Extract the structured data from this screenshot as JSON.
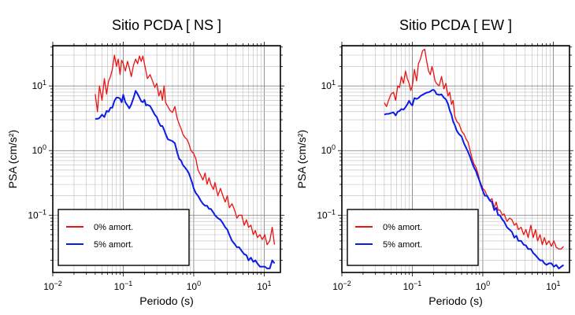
{
  "chart_data": [
    {
      "type": "line",
      "title": "Sitio PCDA [ NS ]",
      "xlabel": "Periodo (s)",
      "ylabel": "PSA (cm/s²)",
      "xscale": "log",
      "yscale": "log",
      "xlim": [
        0.01,
        17
      ],
      "ylim": [
        0.013,
        42
      ],
      "grid": true,
      "legend_position": "bottom-left",
      "x_ticks": [
        {
          "value": 0.01,
          "base": "10",
          "exp": "−2"
        },
        {
          "value": 0.1,
          "base": "10",
          "exp": "−1"
        },
        {
          "value": 1,
          "base": "10",
          "exp": "0"
        },
        {
          "value": 10,
          "base": "10",
          "exp": "1"
        }
      ],
      "y_ticks": [
        {
          "value": 0.1,
          "base": "10",
          "exp": "−1"
        },
        {
          "value": 1,
          "base": "10",
          "exp": "0"
        },
        {
          "value": 10,
          "base": "10",
          "exp": "1"
        }
      ],
      "series": [
        {
          "name": "0% amort.",
          "color": "#ee1111",
          "x": [
            0.04,
            0.043,
            0.046,
            0.05,
            0.054,
            0.058,
            0.062,
            0.066,
            0.07,
            0.075,
            0.08,
            0.085,
            0.09,
            0.095,
            0.1,
            0.107,
            0.115,
            0.122,
            0.13,
            0.14,
            0.15,
            0.16,
            0.17,
            0.18,
            0.19,
            0.2,
            0.21,
            0.22,
            0.24,
            0.26,
            0.28,
            0.3,
            0.32,
            0.34,
            0.36,
            0.38,
            0.4,
            0.43,
            0.46,
            0.5,
            0.54,
            0.58,
            0.62,
            0.66,
            0.7,
            0.75,
            0.8,
            0.85,
            0.9,
            0.95,
            1.0,
            1.07,
            1.15,
            1.25,
            1.35,
            1.45,
            1.55,
            1.65,
            1.75,
            1.9,
            2.0,
            2.2,
            2.4,
            2.6,
            2.8,
            3.0,
            3.2,
            3.5,
            3.8,
            4.1,
            4.4,
            4.8,
            5.2,
            5.6,
            6.0,
            6.5,
            7.0,
            7.5,
            8.0,
            8.7,
            9.4,
            10.2,
            11.0,
            12.0,
            13.0,
            14.0
          ],
          "y": [
            7.5,
            4.0,
            10.0,
            6.0,
            13.0,
            7.5,
            12.0,
            14.0,
            18.0,
            30.0,
            20.0,
            26.0,
            15.0,
            25.0,
            22.0,
            17.0,
            24.0,
            19.0,
            14.0,
            21.0,
            26.0,
            22.0,
            29.0,
            24.0,
            29.0,
            22.0,
            17.0,
            13.0,
            15.0,
            12.0,
            9.5,
            11.0,
            7.0,
            8.5,
            6.0,
            10.0,
            5.5,
            4.8,
            4.2,
            3.9,
            4.8,
            3.2,
            2.6,
            2.2,
            1.8,
            1.6,
            1.5,
            1.3,
            1.05,
            0.95,
            0.9,
            0.75,
            0.5,
            0.42,
            0.35,
            0.45,
            0.3,
            0.38,
            0.3,
            0.25,
            0.32,
            0.2,
            0.26,
            0.2,
            0.16,
            0.2,
            0.13,
            0.15,
            0.12,
            0.09,
            0.1,
            0.1,
            0.07,
            0.085,
            0.065,
            0.07,
            0.05,
            0.058,
            0.045,
            0.05,
            0.042,
            0.05,
            0.035,
            0.04,
            0.065,
            0.035
          ]
        },
        {
          "name": "5% amort.",
          "color": "#0b1be8",
          "x": [
            0.04,
            0.043,
            0.046,
            0.05,
            0.054,
            0.058,
            0.062,
            0.066,
            0.07,
            0.075,
            0.08,
            0.085,
            0.09,
            0.095,
            0.1,
            0.107,
            0.115,
            0.122,
            0.13,
            0.14,
            0.15,
            0.16,
            0.17,
            0.18,
            0.19,
            0.2,
            0.21,
            0.22,
            0.24,
            0.26,
            0.28,
            0.3,
            0.32,
            0.34,
            0.36,
            0.38,
            0.4,
            0.43,
            0.46,
            0.5,
            0.54,
            0.58,
            0.62,
            0.66,
            0.7,
            0.75,
            0.8,
            0.85,
            0.9,
            0.95,
            1.0,
            1.07,
            1.15,
            1.25,
            1.35,
            1.45,
            1.55,
            1.65,
            1.75,
            1.9,
            2.0,
            2.2,
            2.4,
            2.6,
            2.8,
            3.0,
            3.2,
            3.5,
            3.8,
            4.1,
            4.4,
            4.8,
            5.2,
            5.6,
            6.0,
            6.5,
            7.0,
            7.5,
            8.0,
            8.7,
            9.4,
            10.2,
            11.0,
            12.0,
            13.0,
            14.0
          ],
          "y": [
            3.1,
            3.1,
            3.2,
            3.6,
            3.3,
            4.1,
            4.0,
            4.6,
            4.6,
            5.9,
            6.6,
            6.6,
            6.4,
            5.6,
            7.3,
            5.6,
            5.0,
            4.5,
            5.2,
            6.5,
            8.4,
            7.5,
            6.6,
            5.8,
            5.6,
            6.1,
            5.0,
            5.1,
            4.9,
            4.2,
            3.6,
            3.3,
            2.7,
            2.4,
            2.4,
            2.1,
            1.8,
            1.5,
            1.45,
            1.4,
            1.3,
            0.95,
            0.75,
            0.7,
            0.6,
            0.55,
            0.5,
            0.45,
            0.38,
            0.32,
            0.26,
            0.22,
            0.2,
            0.17,
            0.15,
            0.14,
            0.14,
            0.125,
            0.125,
            0.11,
            0.1,
            0.09,
            0.085,
            0.075,
            0.065,
            0.06,
            0.05,
            0.04,
            0.036,
            0.032,
            0.032,
            0.028,
            0.025,
            0.024,
            0.02,
            0.022,
            0.019,
            0.02,
            0.018,
            0.016,
            0.016,
            0.016,
            0.015,
            0.015,
            0.02,
            0.018
          ]
        }
      ]
    },
    {
      "type": "line",
      "title": "Sitio PCDA [ EW ]",
      "xlabel": "Periodo (s)",
      "ylabel": "PSA (cm/s²)",
      "xscale": "log",
      "yscale": "log",
      "xlim": [
        0.01,
        17
      ],
      "ylim": [
        0.013,
        42
      ],
      "grid": true,
      "legend_position": "bottom-left",
      "x_ticks": [
        {
          "value": 0.01,
          "base": "10",
          "exp": "−2"
        },
        {
          "value": 0.1,
          "base": "10",
          "exp": "−1"
        },
        {
          "value": 1,
          "base": "10",
          "exp": "0"
        },
        {
          "value": 10,
          "base": "10",
          "exp": "1"
        }
      ],
      "y_ticks": [
        {
          "value": 0.1,
          "base": "10",
          "exp": "−1"
        },
        {
          "value": 1,
          "base": "10",
          "exp": "0"
        },
        {
          "value": 10,
          "base": "10",
          "exp": "1"
        }
      ],
      "series": [
        {
          "name": "0% amort.",
          "color": "#ee1111",
          "x": [
            0.04,
            0.043,
            0.046,
            0.05,
            0.054,
            0.058,
            0.062,
            0.066,
            0.07,
            0.075,
            0.08,
            0.085,
            0.09,
            0.095,
            0.1,
            0.107,
            0.115,
            0.122,
            0.13,
            0.14,
            0.15,
            0.16,
            0.17,
            0.18,
            0.19,
            0.2,
            0.21,
            0.22,
            0.24,
            0.26,
            0.28,
            0.3,
            0.32,
            0.34,
            0.36,
            0.38,
            0.4,
            0.43,
            0.46,
            0.5,
            0.54,
            0.58,
            0.62,
            0.66,
            0.7,
            0.75,
            0.8,
            0.85,
            0.9,
            0.95,
            1.0,
            1.07,
            1.15,
            1.25,
            1.35,
            1.45,
            1.55,
            1.65,
            1.75,
            1.9,
            2.0,
            2.2,
            2.4,
            2.6,
            2.8,
            3.0,
            3.2,
            3.5,
            3.8,
            4.1,
            4.4,
            4.8,
            5.2,
            5.6,
            6.0,
            6.5,
            7.0,
            7.5,
            8.0,
            8.7,
            9.4,
            10.2,
            11.0,
            12.0,
            13.0,
            14.0
          ],
          "y": [
            5.5,
            4.8,
            6.0,
            7.5,
            8.0,
            6.0,
            10.0,
            9.5,
            14.0,
            11.0,
            17.0,
            13.0,
            11.0,
            8.5,
            10.0,
            18.0,
            12.0,
            22.0,
            26.0,
            35.0,
            37.0,
            24.0,
            17.0,
            15.0,
            20.0,
            16.0,
            12.0,
            11.0,
            10.0,
            14.0,
            9.0,
            11.0,
            7.0,
            8.0,
            5.2,
            6.0,
            3.4,
            2.8,
            2.6,
            2.0,
            1.8,
            1.5,
            1.35,
            1.0,
            0.78,
            0.62,
            0.55,
            0.45,
            0.35,
            0.3,
            0.26,
            0.24,
            0.2,
            0.17,
            0.18,
            0.13,
            0.16,
            0.12,
            0.12,
            0.1,
            0.105,
            0.08,
            0.09,
            0.085,
            0.07,
            0.075,
            0.06,
            0.065,
            0.05,
            0.06,
            0.045,
            0.07,
            0.045,
            0.06,
            0.04,
            0.05,
            0.035,
            0.045,
            0.035,
            0.04,
            0.033,
            0.04,
            0.032,
            0.03,
            0.03,
            0.033
          ]
        },
        {
          "name": "5% amort.",
          "color": "#0b1be8",
          "x": [
            0.04,
            0.043,
            0.046,
            0.05,
            0.054,
            0.058,
            0.062,
            0.066,
            0.07,
            0.075,
            0.08,
            0.085,
            0.09,
            0.095,
            0.1,
            0.107,
            0.115,
            0.122,
            0.13,
            0.14,
            0.15,
            0.16,
            0.17,
            0.18,
            0.19,
            0.2,
            0.21,
            0.22,
            0.24,
            0.26,
            0.28,
            0.3,
            0.32,
            0.34,
            0.36,
            0.38,
            0.4,
            0.43,
            0.46,
            0.5,
            0.54,
            0.58,
            0.62,
            0.66,
            0.7,
            0.75,
            0.8,
            0.85,
            0.9,
            0.95,
            1.0,
            1.07,
            1.15,
            1.25,
            1.35,
            1.45,
            1.55,
            1.65,
            1.75,
            1.9,
            2.0,
            2.2,
            2.4,
            2.6,
            2.8,
            3.0,
            3.2,
            3.5,
            3.8,
            4.1,
            4.4,
            4.8,
            5.2,
            5.6,
            6.0,
            6.5,
            7.0,
            7.5,
            8.0,
            8.7,
            9.4,
            10.2,
            11.0,
            12.0,
            13.0,
            14.0
          ],
          "y": [
            3.6,
            3.7,
            3.7,
            3.8,
            3.9,
            3.5,
            4.0,
            4.1,
            4.4,
            4.3,
            4.7,
            5.2,
            5.9,
            5.3,
            5.0,
            6.5,
            6.3,
            6.5,
            7.0,
            7.3,
            7.6,
            7.9,
            8.0,
            8.2,
            8.6,
            8.7,
            8.3,
            7.5,
            7.3,
            7.4,
            6.6,
            6.2,
            5.3,
            4.2,
            3.6,
            2.8,
            2.5,
            2.0,
            1.8,
            1.65,
            1.3,
            1.1,
            0.95,
            0.8,
            0.66,
            0.55,
            0.48,
            0.4,
            0.34,
            0.28,
            0.24,
            0.2,
            0.2,
            0.17,
            0.16,
            0.12,
            0.13,
            0.1,
            0.1,
            0.085,
            0.08,
            0.065,
            0.06,
            0.055,
            0.045,
            0.048,
            0.04,
            0.04,
            0.035,
            0.034,
            0.03,
            0.03,
            0.026,
            0.024,
            0.022,
            0.02,
            0.02,
            0.018,
            0.017,
            0.018,
            0.018,
            0.016,
            0.017,
            0.015,
            0.016,
            0.017
          ]
        }
      ]
    }
  ]
}
